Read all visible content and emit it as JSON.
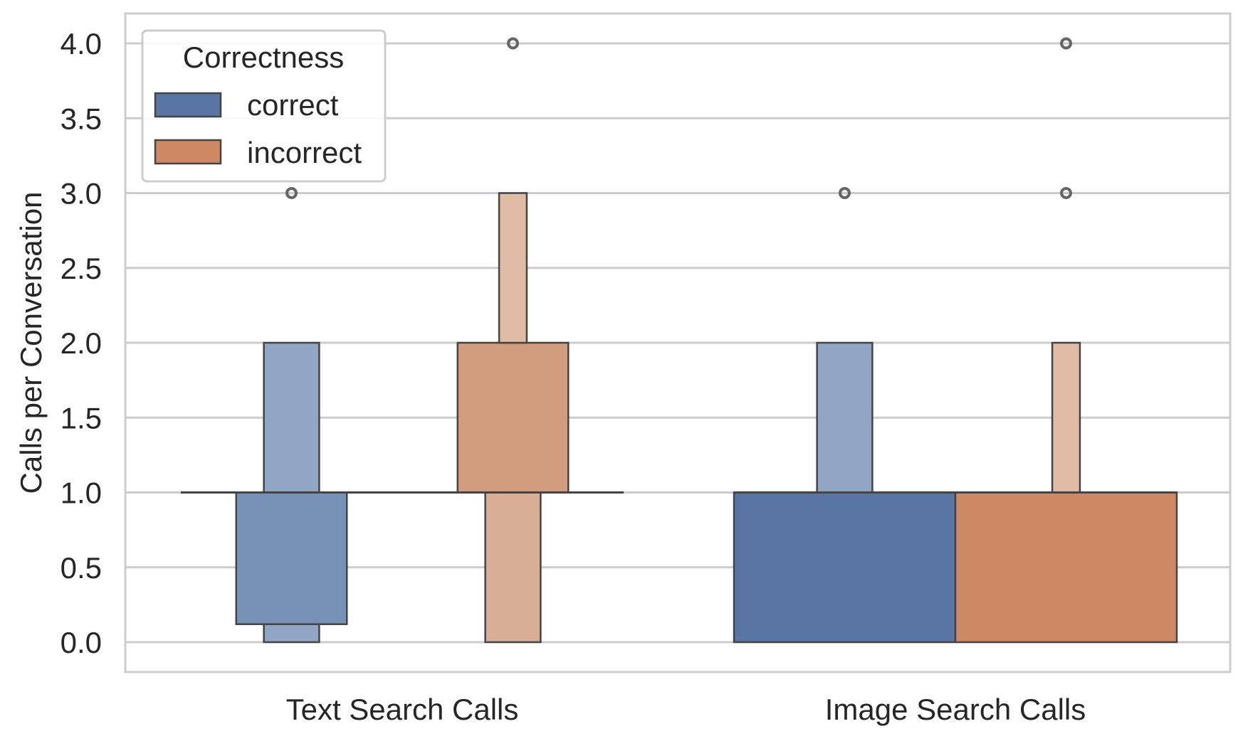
{
  "chart_data": {
    "type": "boxenplot",
    "title": "",
    "xlabel": "",
    "ylabel": "Calls per Conversation",
    "ylim": [
      -0.2,
      4.2
    ],
    "yticks": [
      "0.0",
      "0.5",
      "1.0",
      "1.5",
      "2.0",
      "2.5",
      "3.0",
      "3.5",
      "4.0"
    ],
    "categories": [
      "Text Search Calls",
      "Image Search Calls"
    ],
    "legend": {
      "title": "Correctness",
      "position": "top-left",
      "entries": [
        "correct",
        "incorrect"
      ]
    },
    "colors": {
      "correct": "#5975a4",
      "incorrect": "#cc8963",
      "grid": "#cccccc",
      "edge": "#444444",
      "spine": "#cccccc"
    },
    "grid": true,
    "series": [
      {
        "name": "correct",
        "groups": [
          {
            "category": "Text Search Calls",
            "median": 1.0,
            "boxes": [
              {
                "low": 0.12,
                "high": 1.0,
                "width": 0.5,
                "shade": "#7891b6"
              },
              {
                "low": 0.0,
                "high": 0.12,
                "width": 0.25,
                "shade": "#91a6c5"
              },
              {
                "low": 1.0,
                "high": 2.0,
                "width": 0.25,
                "shade": "#91a6c5"
              }
            ],
            "outliers": [
              3.0
            ]
          },
          {
            "category": "Image Search Calls",
            "median": 1.0,
            "boxes": [
              {
                "low": 0.0,
                "high": 1.0,
                "width": 1.0,
                "shade": "#5975a4"
              },
              {
                "low": 1.0,
                "high": 2.0,
                "width": 0.25,
                "shade": "#91a6c5"
              }
            ],
            "outliers": [
              3.0
            ]
          }
        ]
      },
      {
        "name": "incorrect",
        "groups": [
          {
            "category": "Text Search Calls",
            "median": 1.0,
            "boxes": [
              {
                "low": 1.0,
                "high": 2.0,
                "width": 0.5,
                "shade": "#d29d7e"
              },
              {
                "low": 0.0,
                "high": 1.0,
                "width": 0.25,
                "shade": "#d9ae96"
              },
              {
                "low": 2.0,
                "high": 3.0,
                "width": 0.125,
                "shade": "#e0bba6"
              }
            ],
            "outliers": [
              4.0
            ]
          },
          {
            "category": "Image Search Calls",
            "median": 1.0,
            "boxes": [
              {
                "low": 0.0,
                "high": 1.0,
                "width": 1.0,
                "shade": "#cc8963"
              },
              {
                "low": 1.0,
                "high": 2.0,
                "width": 0.125,
                "shade": "#e0bba6"
              }
            ],
            "outliers": [
              3.0,
              4.0
            ]
          }
        ]
      }
    ]
  }
}
